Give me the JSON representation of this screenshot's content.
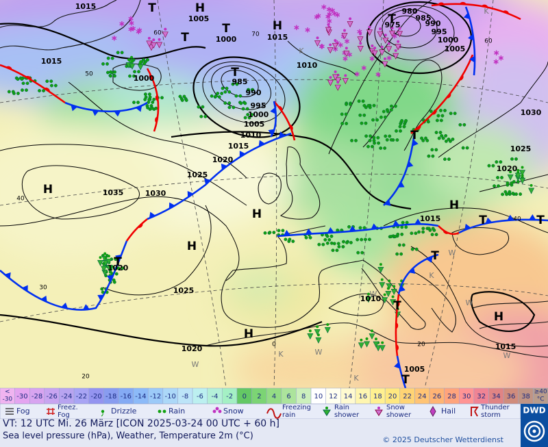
{
  "map": {
    "pressure_labels": [
      "1015",
      "1005",
      "1000",
      "1015",
      "1015",
      "1000",
      "985",
      "990",
      "995",
      "1000",
      "1005",
      "1010",
      "1015",
      "1020",
      "1025",
      "1035",
      "1030",
      "1010",
      "980",
      "985",
      "975",
      "990",
      "995",
      "1000",
      "1005",
      "1030",
      "1025",
      "1020",
      "1015",
      "1020",
      "1025",
      "1010",
      "1015",
      "1005",
      "1020"
    ],
    "highs": [
      "H",
      "H",
      "H",
      "H",
      "H",
      "H",
      "H",
      "H"
    ],
    "lows": [
      "T",
      "T",
      "T",
      "T",
      "T",
      "T",
      "T",
      "T",
      "T",
      "T",
      "T",
      "T"
    ],
    "lat_labels": [
      "60",
      "70",
      "50",
      "40",
      "30",
      "20",
      "0",
      "60",
      "40",
      "20"
    ],
    "air_mass_labels": [
      "K",
      "K",
      "K",
      "K",
      "K",
      "W",
      "W",
      "W",
      "W",
      "W",
      "W"
    ]
  },
  "color_scale": [
    {
      "lines": [
        "<",
        "-30"
      ],
      "color": "#f0b4f0"
    },
    {
      "lines": [
        "-30"
      ],
      "color": "#e4a4f0"
    },
    {
      "lines": [
        "-28"
      ],
      "color": "#d8a4f0"
    },
    {
      "lines": [
        "-26"
      ],
      "color": "#c8a4f0"
    },
    {
      "lines": [
        "-24"
      ],
      "color": "#b8a4f0"
    },
    {
      "lines": [
        "-22"
      ],
      "color": "#a8a4f4"
    },
    {
      "lines": [
        "-20"
      ],
      "color": "#9494f0"
    },
    {
      "lines": [
        "-18"
      ],
      "color": "#889cf0"
    },
    {
      "lines": [
        "-16"
      ],
      "color": "#84aaf4"
    },
    {
      "lines": [
        "-14"
      ],
      "color": "#8cbaf8"
    },
    {
      "lines": [
        "-12"
      ],
      "color": "#9ccaf8"
    },
    {
      "lines": [
        "-10"
      ],
      "color": "#acd8f8"
    },
    {
      "lines": [
        "-8"
      ],
      "color": "#bce4f8"
    },
    {
      "lines": [
        "-6"
      ],
      "color": "#bcf0f0"
    },
    {
      "lines": [
        "-4"
      ],
      "color": "#b4f0d8"
    },
    {
      "lines": [
        "-2"
      ],
      "color": "#a4f0c4"
    },
    {
      "lines": [
        "0"
      ],
      "color": "#64c864"
    },
    {
      "lines": [
        "2"
      ],
      "color": "#7cd474"
    },
    {
      "lines": [
        "4"
      ],
      "color": "#94dc84"
    },
    {
      "lines": [
        "6"
      ],
      "color": "#ace49c"
    },
    {
      "lines": [
        "8"
      ],
      "color": "#ccf0bc"
    },
    {
      "lines": [
        "10"
      ],
      "color": "#ffffff"
    },
    {
      "lines": [
        "12"
      ],
      "color": "#fffff0"
    },
    {
      "lines": [
        "14"
      ],
      "color": "#fffad0"
    },
    {
      "lines": [
        "16"
      ],
      "color": "#fff6b0"
    },
    {
      "lines": [
        "18"
      ],
      "color": "#fff090"
    },
    {
      "lines": [
        "20"
      ],
      "color": "#ffe880"
    },
    {
      "lines": [
        "22"
      ],
      "color": "#ffd474"
    },
    {
      "lines": [
        "24"
      ],
      "color": "#ffc474"
    },
    {
      "lines": [
        "26"
      ],
      "color": "#ffb474"
    },
    {
      "lines": [
        "28"
      ],
      "color": "#ffa47c"
    },
    {
      "lines": [
        "30"
      ],
      "color": "#ff9494"
    },
    {
      "lines": [
        "32"
      ],
      "color": "#f08494"
    },
    {
      "lines": [
        "34"
      ],
      "color": "#e08484"
    },
    {
      "lines": [
        "36"
      ],
      "color": "#d08c7c"
    },
    {
      "lines": [
        "38"
      ],
      "color": "#c09484"
    },
    {
      "lines": [
        "≥40",
        "°C"
      ],
      "color": "#b89c8c"
    }
  ],
  "legend": [
    {
      "lines": [
        "Fog"
      ]
    },
    {
      "lines": [
        "Freez.",
        "Fog"
      ]
    },
    {
      "lines": [
        "Drizzle"
      ]
    },
    {
      "lines": [
        "Rain"
      ]
    },
    {
      "lines": [
        "Snow"
      ]
    },
    {
      "lines": [
        "Freezing",
        "rain"
      ]
    },
    {
      "lines": [
        "Rain",
        "shower"
      ]
    },
    {
      "lines": [
        "Snow",
        "shower"
      ]
    },
    {
      "lines": [
        "Hail"
      ]
    },
    {
      "lines": [
        "Thunder",
        "storm"
      ]
    }
  ],
  "footer": {
    "valid_time": "VT: 12 UTC Mi.  26 März [ICON 2025-03-24  00 UTC + 60 h]",
    "description": "Sea level pressure (hPa), Weather, Temperature 2m (°C)",
    "copyright": "© 2025 Deutscher Wetterdienst",
    "logo": "DWD"
  }
}
